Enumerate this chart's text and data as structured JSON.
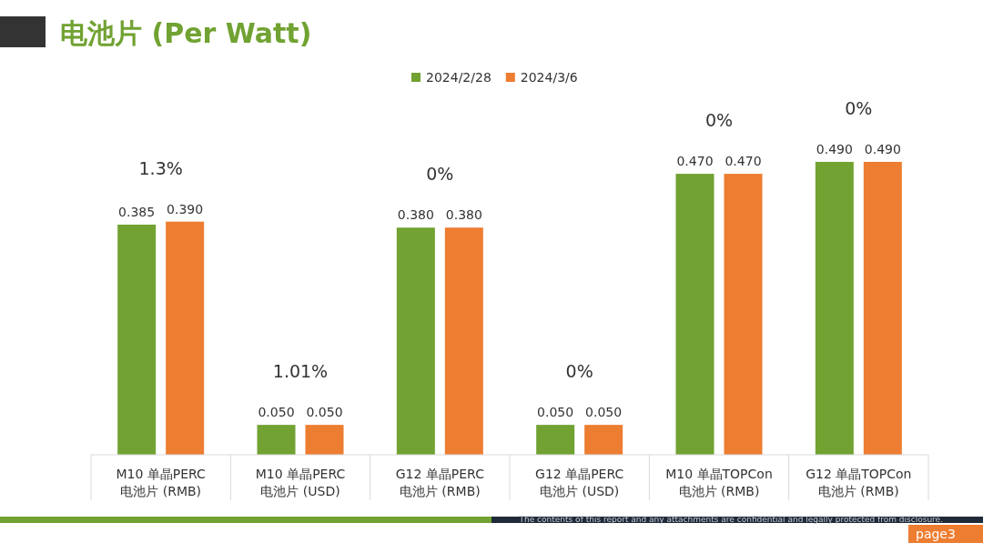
{
  "chart_data": {
    "type": "bar",
    "title": "电池片 (Per Watt)",
    "categories": [
      "M10 单晶PERC\n电池片 (RMB)",
      "M10 单晶PERC\n电池片 (USD)",
      "G12 单晶PERC\n电池片 (RMB)",
      "G12 单晶PERC\n电池片 (USD)",
      "M10 单晶TOPCon\n电池片 (RMB)",
      "G12 单晶TOPCon\n电池片 (RMB)"
    ],
    "series": [
      {
        "name": "2024/2/28",
        "color": "#71a232",
        "values": [
          0.385,
          0.05,
          0.38,
          0.05,
          0.47,
          0.49
        ],
        "value_labels": [
          "0.385",
          "0.050",
          "0.380",
          "0.050",
          "0.470",
          "0.490"
        ]
      },
      {
        "name": "2024/3/6",
        "color": "#ed7d31",
        "values": [
          0.39,
          0.05,
          0.38,
          0.05,
          0.47,
          0.49
        ],
        "value_labels": [
          "0.390",
          "0.050",
          "0.380",
          "0.050",
          "0.470",
          "0.490"
        ]
      }
    ],
    "legend": "top",
    "annotations": [
      "1.3%",
      "1.01%",
      "0%",
      "0%",
      "0%",
      "0%",
      "The contents of this report and any attachments are confidential and legally protected from disclosure.",
      "page3"
    ]
  }
}
